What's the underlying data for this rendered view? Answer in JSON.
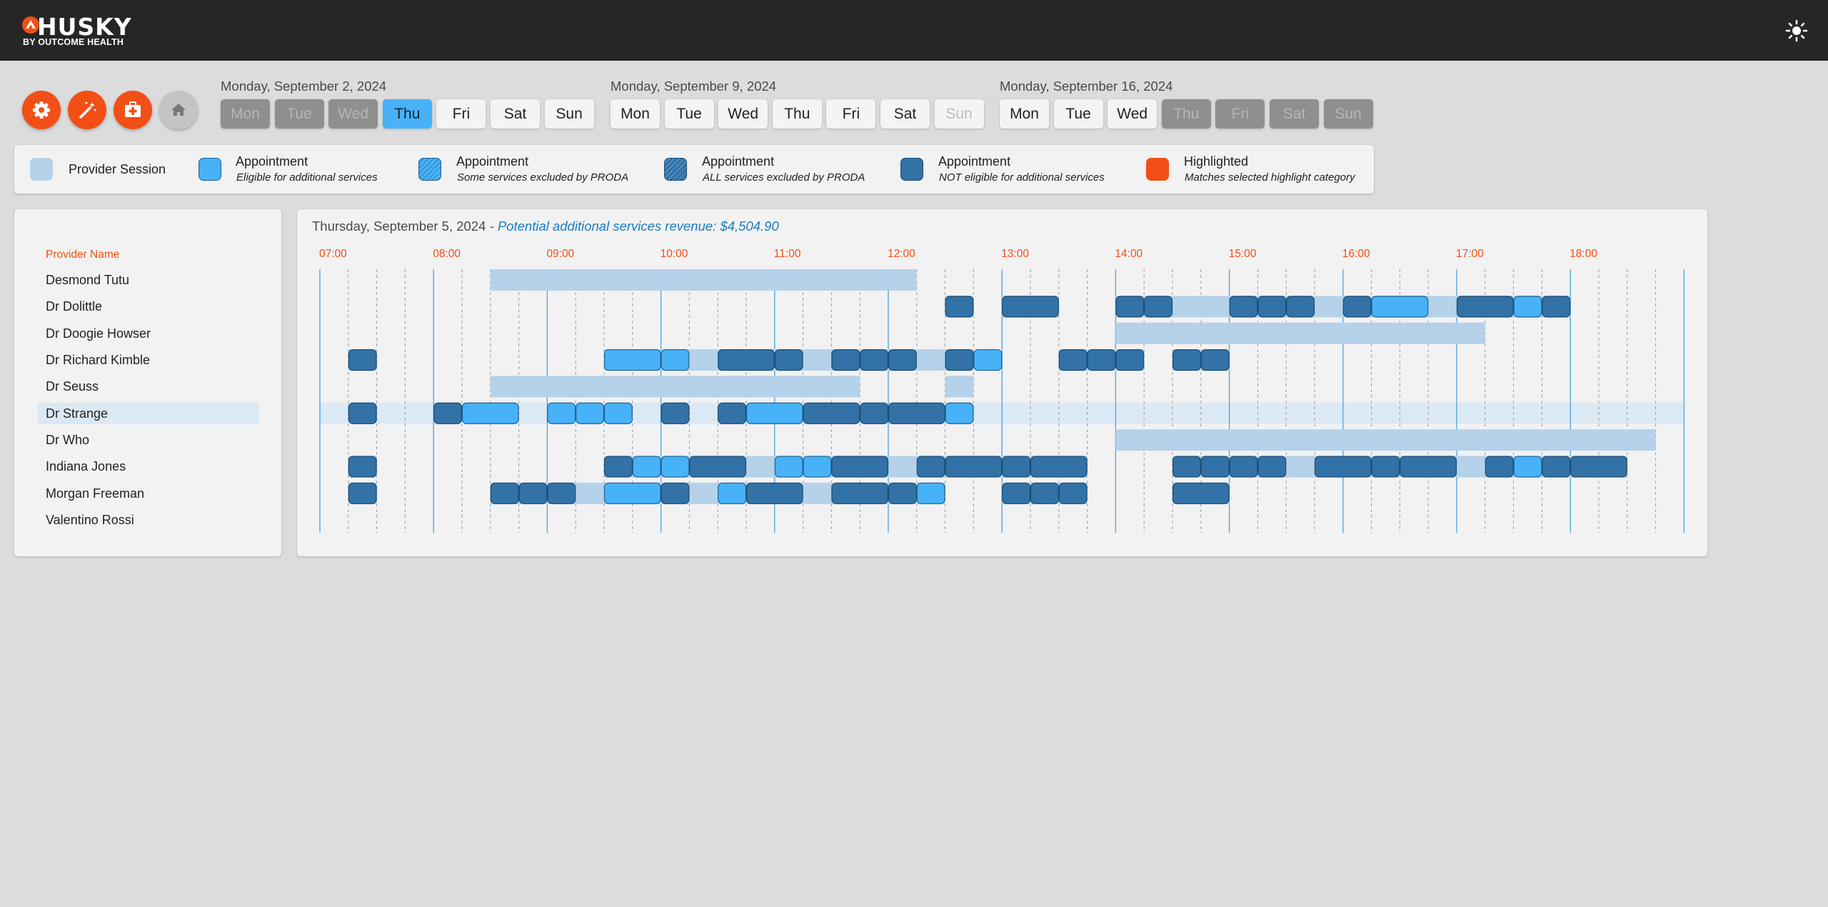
{
  "brand": {
    "name": "HUSKY",
    "tagline": "BY OUTCOME HEALTH"
  },
  "toolbar": {
    "buttons": [
      {
        "name": "settings-button",
        "icon": "gear-icon"
      },
      {
        "name": "magic-wand-button",
        "icon": "magic-wand-icon"
      },
      {
        "name": "medical-kit-button",
        "icon": "medical-kit-icon"
      },
      {
        "name": "home-button",
        "icon": "home-icon"
      }
    ]
  },
  "weeks": [
    {
      "label": "Monday, September 2, 2024",
      "days": [
        {
          "label": "Mon",
          "state": "disabled"
        },
        {
          "label": "Tue",
          "state": "disabled"
        },
        {
          "label": "Wed",
          "state": "disabled"
        },
        {
          "label": "Thu",
          "state": "active"
        },
        {
          "label": "Fri",
          "state": "normal"
        },
        {
          "label": "Sat",
          "state": "normal"
        },
        {
          "label": "Sun",
          "state": "normal"
        }
      ]
    },
    {
      "label": "Monday, September 9, 2024",
      "days": [
        {
          "label": "Mon",
          "state": "normal"
        },
        {
          "label": "Tue",
          "state": "normal"
        },
        {
          "label": "Wed",
          "state": "normal"
        },
        {
          "label": "Thu",
          "state": "normal"
        },
        {
          "label": "Fri",
          "state": "normal"
        },
        {
          "label": "Sat",
          "state": "normal"
        },
        {
          "label": "Sun",
          "state": "muted"
        }
      ]
    },
    {
      "label": "Monday, September 16, 2024",
      "days": [
        {
          "label": "Mon",
          "state": "normal"
        },
        {
          "label": "Tue",
          "state": "normal"
        },
        {
          "label": "Wed",
          "state": "normal"
        },
        {
          "label": "Thu",
          "state": "disabled"
        },
        {
          "label": "Fri",
          "state": "disabled"
        },
        {
          "label": "Sat",
          "state": "disabled"
        },
        {
          "label": "Sun",
          "state": "disabled"
        }
      ]
    }
  ],
  "legend": {
    "items": [
      {
        "type": "session",
        "title": "Provider Session",
        "subtitle": ""
      },
      {
        "type": "eligible",
        "title": "Appointment",
        "subtitle": "Eligible for additional services"
      },
      {
        "type": "some_excluded",
        "title": "Appointment",
        "subtitle": "Some services excluded by PRODA"
      },
      {
        "type": "all_excluded",
        "title": "Appointment",
        "subtitle": "ALL services excluded by PRODA"
      },
      {
        "type": "not_eligible",
        "title": "Appointment",
        "subtitle": "NOT eligible for additional services"
      },
      {
        "type": "highlighted",
        "title": "Highlighted",
        "subtitle": "Matches selected highlight category"
      }
    ]
  },
  "colors": {
    "accent": "#f24f16",
    "topbar": "#262626",
    "session": "#b5d2ea",
    "eligible": "#47b2f8",
    "not_eligible": "#3272a6",
    "highlighted": "#f24f16",
    "active_day": "#47b2f8",
    "grid_major": "#4aa3e0",
    "grid_minor": "#9a9a9a",
    "selected_row": "#dbe9f5"
  },
  "providers": {
    "header": "Provider Name",
    "selected_index": 5,
    "names": [
      "Desmond Tutu",
      "Dr Dolittle",
      "Dr Doogie Howser",
      "Dr Richard Kimble",
      "Dr Seuss",
      "Dr Strange",
      "Dr Who",
      "Indiana Jones",
      "Morgan Freeman",
      "Valentino Rossi"
    ]
  },
  "schedule": {
    "date_label": "Thursday, September 5, 2024",
    "separator": " - ",
    "revenue_label": "Potential additional services revenue: $4,504.90",
    "hours": [
      "07:00",
      "08:00",
      "09:00",
      "10:00",
      "11:00",
      "12:00",
      "13:00",
      "14:00",
      "15:00",
      "16:00",
      "17:00",
      "18:00"
    ],
    "rows": [
      {
        "sessions": [
          [
            "08:30",
            "12:15"
          ]
        ],
        "appointments": []
      },
      {
        "sessions": [
          [
            "12:30",
            "12:45"
          ],
          [
            "13:00",
            "13:30"
          ],
          [
            "14:00",
            "18:00"
          ]
        ],
        "appointments": [
          [
            "12:30",
            "12:45",
            "n"
          ],
          [
            "13:00",
            "13:30",
            "n"
          ],
          [
            "14:00",
            "14:15",
            "n"
          ],
          [
            "14:15",
            "14:30",
            "n"
          ],
          [
            "15:00",
            "15:15",
            "n"
          ],
          [
            "15:15",
            "15:30",
            "n"
          ],
          [
            "15:30",
            "15:45",
            "n"
          ],
          [
            "16:00",
            "16:15",
            "n"
          ],
          [
            "16:15",
            "16:45",
            "e"
          ],
          [
            "17:00",
            "17:30",
            "n"
          ],
          [
            "17:30",
            "17:45",
            "e"
          ],
          [
            "17:45",
            "18:00",
            "n"
          ]
        ]
      },
      {
        "sessions": [
          [
            "14:00",
            "17:15"
          ]
        ],
        "appointments": []
      },
      {
        "sessions": [
          [
            "07:15",
            "07:30"
          ],
          [
            "09:30",
            "12:45"
          ],
          [
            "13:30",
            "14:15"
          ],
          [
            "14:30",
            "15:00"
          ]
        ],
        "appointments": [
          [
            "07:15",
            "07:30",
            "n"
          ],
          [
            "09:30",
            "10:00",
            "e"
          ],
          [
            "10:00",
            "10:15",
            "e"
          ],
          [
            "10:30",
            "11:00",
            "n"
          ],
          [
            "11:00",
            "11:15",
            "n"
          ],
          [
            "11:30",
            "11:45",
            "n"
          ],
          [
            "11:45",
            "12:00",
            "n"
          ],
          [
            "12:00",
            "12:15",
            "n"
          ],
          [
            "12:30",
            "12:45",
            "n"
          ],
          [
            "12:45",
            "13:00",
            "e"
          ],
          [
            "13:30",
            "13:45",
            "n"
          ],
          [
            "13:45",
            "14:00",
            "n"
          ],
          [
            "14:00",
            "14:15",
            "n"
          ],
          [
            "14:30",
            "14:45",
            "n"
          ],
          [
            "14:45",
            "15:00",
            "n"
          ]
        ]
      },
      {
        "sessions": [
          [
            "08:30",
            "11:45"
          ],
          [
            "12:30",
            "12:45"
          ]
        ],
        "appointments": []
      },
      {
        "sessions": [
          [
            "07:00",
            "19:00"
          ]
        ],
        "appointments": [
          [
            "07:15",
            "07:30",
            "n"
          ],
          [
            "08:00",
            "08:15",
            "n"
          ],
          [
            "08:15",
            "08:45",
            "e"
          ],
          [
            "09:00",
            "09:15",
            "e"
          ],
          [
            "09:15",
            "09:30",
            "e"
          ],
          [
            "09:30",
            "09:45",
            "e"
          ],
          [
            "10:00",
            "10:15",
            "n"
          ],
          [
            "10:30",
            "10:45",
            "n"
          ],
          [
            "10:45",
            "11:15",
            "e"
          ],
          [
            "11:15",
            "11:45",
            "n"
          ],
          [
            "11:45",
            "12:00",
            "n"
          ],
          [
            "12:00",
            "12:30",
            "n"
          ],
          [
            "12:30",
            "12:45",
            "e"
          ]
        ]
      },
      {
        "sessions": [
          [
            "14:00",
            "18:45"
          ]
        ],
        "appointments": []
      },
      {
        "sessions": [
          [
            "07:15",
            "07:30"
          ],
          [
            "09:30",
            "13:45"
          ],
          [
            "14:30",
            "18:30"
          ]
        ],
        "appointments": [
          [
            "07:15",
            "07:30",
            "n"
          ],
          [
            "09:30",
            "09:45",
            "n"
          ],
          [
            "09:45",
            "10:00",
            "e"
          ],
          [
            "10:00",
            "10:15",
            "e"
          ],
          [
            "10:15",
            "10:45",
            "n"
          ],
          [
            "11:00",
            "11:15",
            "e"
          ],
          [
            "11:15",
            "11:30",
            "e"
          ],
          [
            "11:30",
            "12:00",
            "n"
          ],
          [
            "12:15",
            "12:30",
            "n"
          ],
          [
            "12:30",
            "13:00",
            "n"
          ],
          [
            "13:00",
            "13:15",
            "n"
          ],
          [
            "13:15",
            "13:45",
            "n"
          ],
          [
            "14:30",
            "14:45",
            "n"
          ],
          [
            "14:45",
            "15:00",
            "n"
          ],
          [
            "15:00",
            "15:15",
            "n"
          ],
          [
            "15:15",
            "15:30",
            "n"
          ],
          [
            "15:45",
            "16:15",
            "n"
          ],
          [
            "16:15",
            "16:30",
            "n"
          ],
          [
            "16:30",
            "17:00",
            "n"
          ],
          [
            "17:15",
            "17:30",
            "n"
          ],
          [
            "17:30",
            "17:45",
            "e"
          ],
          [
            "17:45",
            "18:00",
            "n"
          ],
          [
            "18:00",
            "18:30",
            "n"
          ]
        ]
      },
      {
        "sessions": [
          [
            "07:15",
            "07:30"
          ],
          [
            "08:30",
            "12:30"
          ],
          [
            "13:00",
            "13:45"
          ],
          [
            "14:30",
            "15:00"
          ]
        ],
        "appointments": [
          [
            "07:15",
            "07:30",
            "n"
          ],
          [
            "08:30",
            "08:45",
            "n"
          ],
          [
            "08:45",
            "09:00",
            "n"
          ],
          [
            "09:00",
            "09:15",
            "n"
          ],
          [
            "09:30",
            "10:00",
            "e"
          ],
          [
            "10:00",
            "10:15",
            "n"
          ],
          [
            "10:30",
            "10:45",
            "e"
          ],
          [
            "10:45",
            "11:15",
            "n"
          ],
          [
            "11:30",
            "12:00",
            "n"
          ],
          [
            "12:00",
            "12:15",
            "n"
          ],
          [
            "12:15",
            "12:30",
            "e"
          ],
          [
            "13:00",
            "13:15",
            "n"
          ],
          [
            "13:15",
            "13:30",
            "n"
          ],
          [
            "13:30",
            "13:45",
            "n"
          ],
          [
            "14:30",
            "15:00",
            "n"
          ]
        ]
      },
      {
        "sessions": [],
        "appointments": []
      }
    ]
  }
}
